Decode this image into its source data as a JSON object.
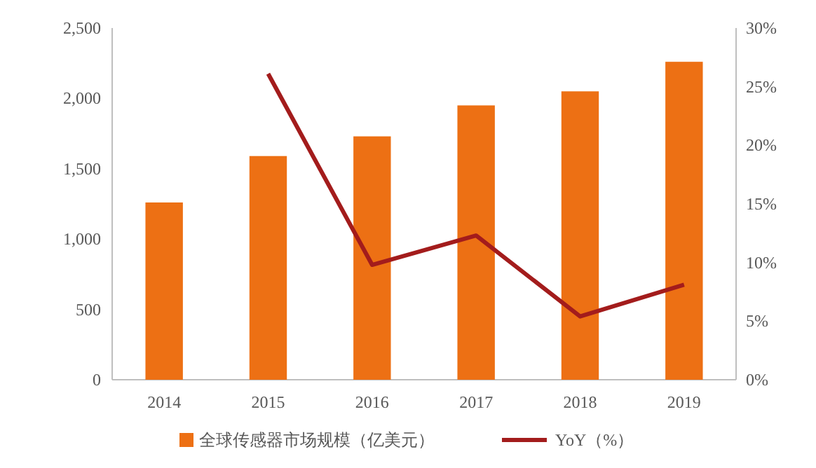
{
  "chart_data": {
    "type": "bar",
    "categories": [
      "2014",
      "2015",
      "2016",
      "2017",
      "2018",
      "2019"
    ],
    "series": [
      {
        "name": "全球传感器市场规模（亿美元）",
        "color": "#ed7014",
        "values": [
          1260,
          1590,
          1730,
          1950,
          2050,
          2260
        ]
      },
      {
        "name": "YoY（%）",
        "type": "line",
        "axis": "y2",
        "color": "#a31c1c",
        "values": [
          null,
          26.1,
          9.8,
          12.3,
          5.4,
          8.1
        ]
      }
    ],
    "ylim": [
      0,
      2500
    ],
    "yticks": [
      0,
      500,
      {
        "value": 1000,
        "label": "1,000"
      },
      {
        "value": 1500,
        "label": "1,500"
      },
      {
        "value": 2000,
        "label": "2,000"
      },
      {
        "value": 2500,
        "label": "2,500"
      }
    ],
    "y2lim": [
      0,
      30
    ],
    "y2ticks": [
      {
        "value": 0,
        "label": "0%"
      },
      {
        "value": 5,
        "label": "5%"
      },
      {
        "value": 10,
        "label": "10%"
      },
      {
        "value": 15,
        "label": "15%"
      },
      {
        "value": 20,
        "label": "20%"
      },
      {
        "value": 25,
        "label": "25%"
      },
      {
        "value": 30,
        "label": "30%"
      }
    ],
    "legend": "bottom"
  }
}
